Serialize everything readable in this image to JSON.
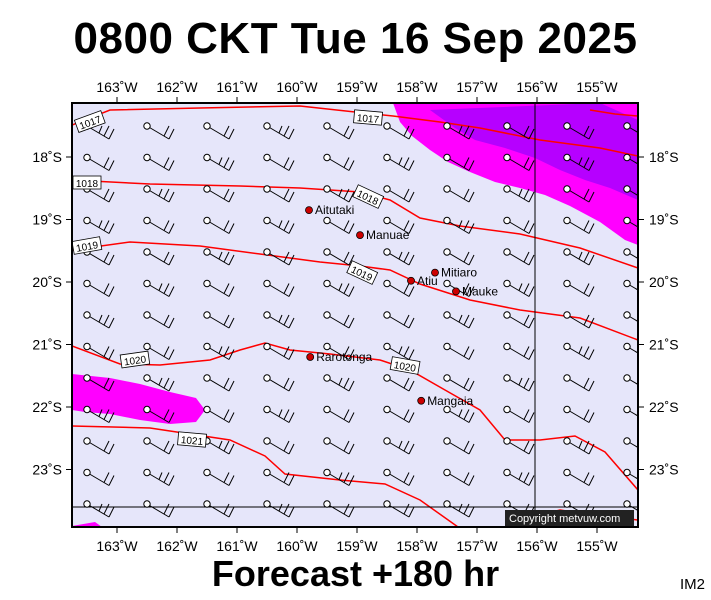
{
  "title": "0800 CKT Tue 16 Sep 2025",
  "footer": "Forecast +180 hr",
  "product_id": "IM2",
  "copyright": "Copyright metvuw.com",
  "lon_labels": [
    "163˚W",
    "162˚W",
    "161˚W",
    "160˚W",
    "159˚W",
    "158˚W",
    "157˚W",
    "156˚W",
    "155˚W"
  ],
  "lat_labels": [
    "18˚S",
    "19˚S",
    "20˚S",
    "21˚S",
    "22˚S",
    "23˚S"
  ],
  "isobar_labels": [
    "1017",
    "1017",
    "1018",
    "1018",
    "1019",
    "1019",
    "1020",
    "1020",
    "1021"
  ],
  "places": [
    {
      "name": "Aitutaki",
      "lon": -159.8,
      "lat": -18.85
    },
    {
      "name": "Manuae",
      "lon": -158.95,
      "lat": -19.25
    },
    {
      "name": "Atiu",
      "lon": -158.1,
      "lat": -19.98
    },
    {
      "name": "Mitiaro",
      "lon": -157.7,
      "lat": -19.85
    },
    {
      "name": "Mauke",
      "lon": -157.35,
      "lat": -20.15
    },
    {
      "name": "Rarotonga",
      "lon": -159.78,
      "lat": -21.2
    },
    {
      "name": "Mangaia",
      "lon": -157.93,
      "lat": -21.9
    }
  ],
  "colors": {
    "map_background": "#e6e6fa",
    "precip_light": "#ff00ff",
    "precip_heavy": "#9d00ff",
    "isobar": "#ff0000",
    "place_marker": "#cc0000"
  },
  "wind": {
    "direction": "easterly",
    "barb_style": "station circle with feathered barbs"
  }
}
